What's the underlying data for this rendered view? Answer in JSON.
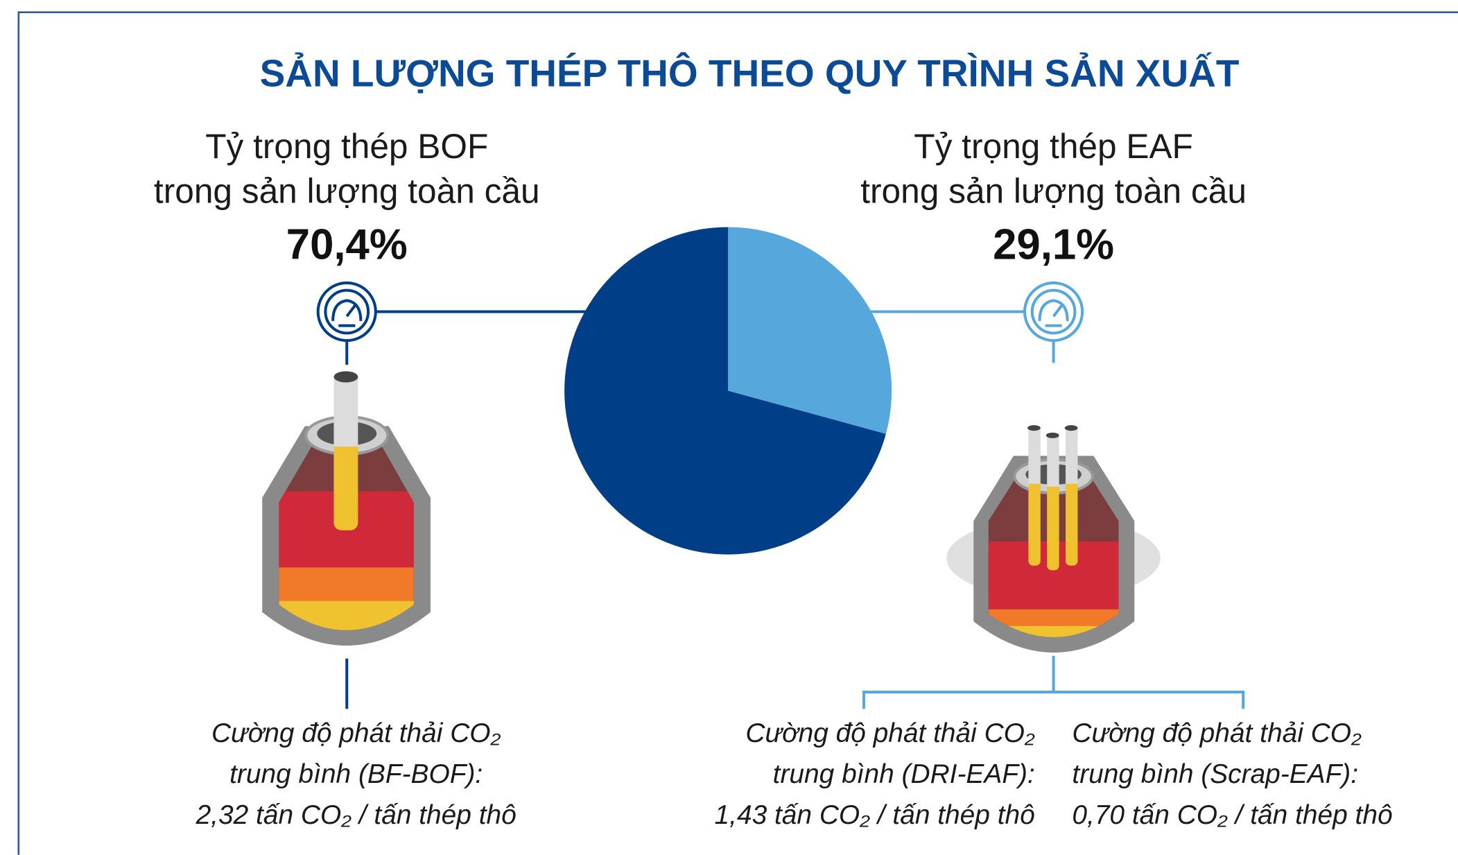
{
  "chart_data": {
    "type": "pie",
    "title": "SẢN LƯỢNG THÉP THÔ THEO QUY TRÌNH SẢN XUẤT",
    "labels": [
      [
        "Tỷ trọng thép BOF",
        "trong sản lượng toàn cầu"
      ],
      [
        "Tỷ trọng thép EAF",
        "trong sản lượng toàn cầu"
      ]
    ],
    "values": [
      70.4,
      29.1
    ],
    "value_labels": [
      "70,4%",
      "29,1%"
    ],
    "colors": [
      "#003f88",
      "#56a8dc"
    ],
    "annotations": [
      [
        "Cường độ phát thải CO₂",
        "trung bình (BF-BOF):",
        "2,32 tấn CO₂ / tấn thép thô"
      ],
      [
        "Cường độ phát thải CO₂",
        "trung bình (DRI-EAF):",
        "1,43 tấn CO₂ / tấn thép thô"
      ],
      [
        "Cường độ phát thải CO₂",
        "trung bình (Scrap-EAF):",
        "0,70 tấn CO₂ / tấn thép thô"
      ]
    ]
  }
}
